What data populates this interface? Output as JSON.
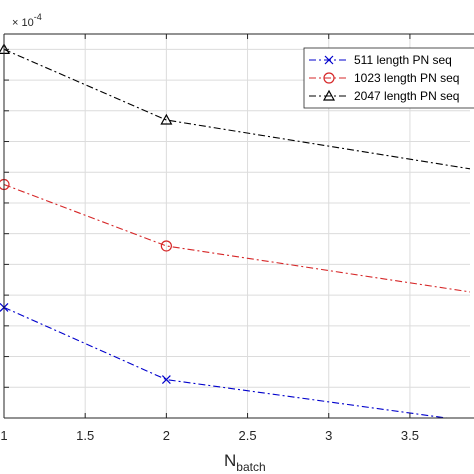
{
  "chart_data": {
    "type": "line",
    "xlabel": "N",
    "xlabel_subscript": "batch",
    "ylabel": "",
    "y_exponent": "× 10",
    "y_exponent_power": "-4",
    "xlim": [
      1,
      3.87
    ],
    "ylim": [
      0,
      12.5
    ],
    "x_ticks": [
      1,
      1.5,
      2,
      2.5,
      3,
      3.5
    ],
    "x_tick_labels": [
      "1",
      "1.5",
      "2",
      "2.5",
      "3",
      "3.5"
    ],
    "grid": true,
    "legend_position": "top-right",
    "series": [
      {
        "name": "511 length PN seq",
        "color": "#0000CC",
        "marker": "x",
        "x": [
          1,
          2,
          4
        ],
        "y": [
          3.6,
          1.25,
          -0.2
        ]
      },
      {
        "name": "1023 length PN seq",
        "color": "#D62728",
        "marker": "o",
        "x": [
          1,
          2,
          4
        ],
        "y": [
          7.6,
          5.6,
          4.0
        ]
      },
      {
        "name": "2047 length PN seq",
        "color": "#000000",
        "marker": "^",
        "x": [
          1,
          2,
          4
        ],
        "y": [
          12.0,
          9.7,
          8.0
        ]
      }
    ]
  }
}
